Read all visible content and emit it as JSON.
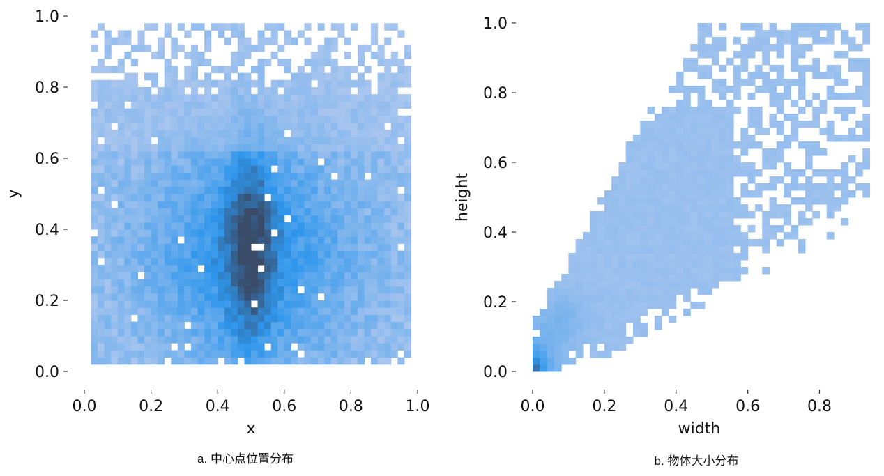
{
  "colors": {
    "low": "#a8c5ee",
    "mid": "#2e96ec",
    "high": "#394b68",
    "tick": "#333333"
  },
  "chart_data": [
    {
      "type": "heatmap",
      "caption": "a. 中心点位置分布",
      "xlabel": "x",
      "ylabel": "y",
      "xlim": [
        0.0,
        1.0
      ],
      "ylim": [
        0.0,
        1.0
      ],
      "xticks": [
        "0.0",
        "0.2",
        "0.4",
        "0.6",
        "0.8",
        "1.0"
      ],
      "yticks": [
        "0.0",
        "0.2",
        "0.4",
        "0.6",
        "0.8",
        "1.0"
      ],
      "grid": false,
      "bin_size": 0.02,
      "value_range": [
        0,
        1
      ],
      "density_model": "2D histogram of object center points; broad density over x 0.02–0.98 and y 0.02–0.98, peak (darkest) along x≈0.5, y 0.15–0.55, blue ring around x 0.25–0.75, y 0.1–0.6",
      "peak": {
        "x": 0.5,
        "y": 0.35
      }
    },
    {
      "type": "heatmap",
      "caption": "b. 物体大小分布",
      "xlabel": "width",
      "ylabel": "height",
      "xlim": [
        0.0,
        0.94
      ],
      "ylim": [
        0.0,
        1.0
      ],
      "xticks": [
        "0.0",
        "0.2",
        "0.4",
        "0.6",
        "0.8"
      ],
      "yticks": [
        "0.0",
        "0.2",
        "0.4",
        "0.6",
        "0.8",
        "1.0"
      ],
      "grid": false,
      "bin_size": 0.02,
      "value_range": [
        0,
        1
      ],
      "density_model": "2D histogram of object width vs height; mass concentrated near origin (darkest at width≈0.01, height≈0.02), light cone spreading up to width≈0.9, height≈1.0",
      "peak": {
        "x": 0.01,
        "y": 0.02
      }
    }
  ]
}
